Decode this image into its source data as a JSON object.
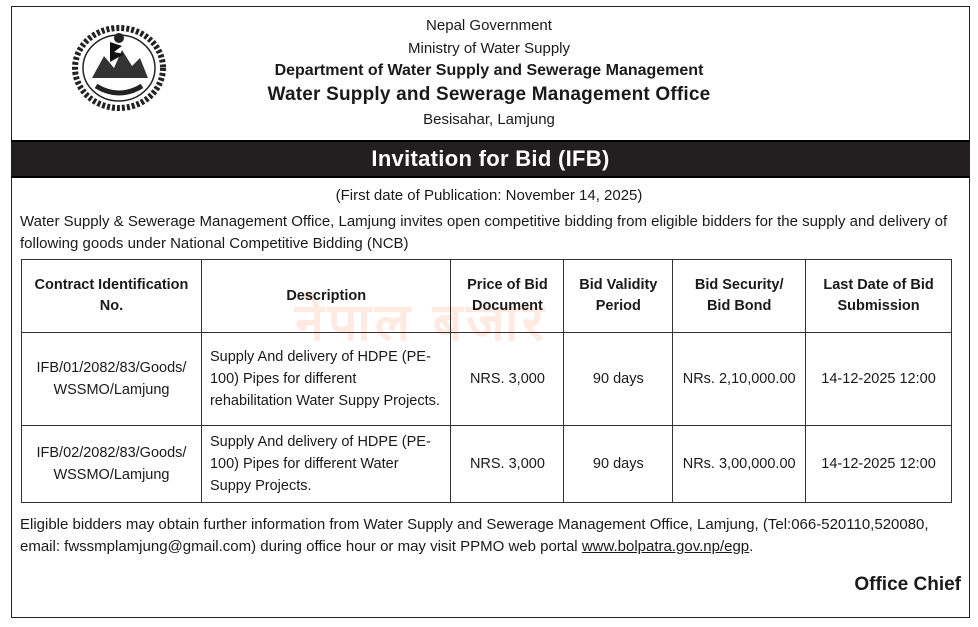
{
  "header": {
    "line1": "Nepal Government",
    "line2": "Ministry of Water Supply",
    "department": "Department of Water Supply and Sewerage Management",
    "office": "Water Supply and Sewerage Management Office",
    "location": "Besisahar, Lamjung"
  },
  "notice": {
    "title": "Invitation for Bid (IFB)",
    "publication": "(First date of Publication: November 14, 2025)",
    "intro": "Water Supply & Sewerage Management Office, Lamjung invites open competitive bidding from eligible bidders for the supply and delivery of following goods under National Competitive Bidding (NCB)"
  },
  "table": {
    "headers": {
      "contract": "Contract Identification No.",
      "description": "Description",
      "price": "Price of Bid Document",
      "validity": "Bid Validity Period",
      "security": "Bid Security/ Bid Bond",
      "deadline": "Last Date of Bid Submission"
    },
    "rows": [
      {
        "contract": "IFB/01/2082/83/Goods/ WSSMO/Lamjung",
        "description": "Supply And delivery of HDPE (PE-100) Pipes for different rehabilitation Water Suppy Projects.",
        "price": "NRS. 3,000",
        "validity": "90 days",
        "security": "NRs. 2,10,000.00",
        "deadline": "14-12-2025 12:00"
      },
      {
        "contract": "IFB/02/2082/83/Goods/ WSSMO/Lamjung",
        "description": "Supply And delivery of HDPE (PE-100) Pipes for different Water Suppy Projects.",
        "price": "NRS. 3,000",
        "validity": "90 days",
        "security": "NRs. 3,00,000.00",
        "deadline": "14-12-2025 12:00"
      }
    ]
  },
  "footer": {
    "text": "Eligible bidders may obtain further information from Water Supply and Sewerage Management Office, Lamjung, (Tel:066-520110,520080, email: fwssmplamjung@gmail.com) during office hour or may visit PPMO web portal ",
    "link": "www.bolpatra.gov.np/egp",
    "end": ".",
    "signature": "Office Chief"
  },
  "watermark": "नेपाल बजार",
  "colors": {
    "bar": "#231f20",
    "text": "#1a1a1a",
    "watermark": "#ffd9cc"
  }
}
